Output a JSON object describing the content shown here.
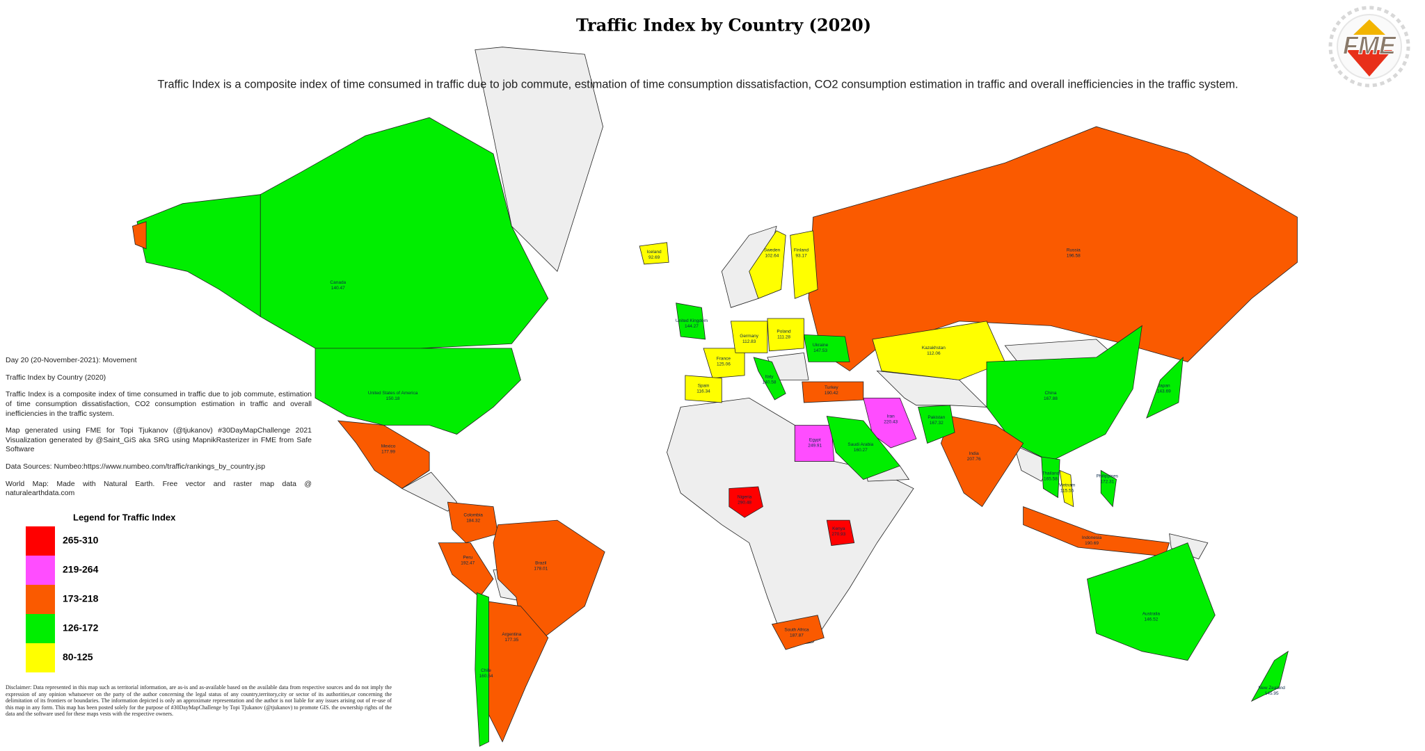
{
  "header": {
    "title": "Traffic Index by Country (2020)",
    "subtitle": "Traffic Index is a composite index of time consumed in traffic due to job commute, estimation of time consumption dissatisfaction, CO2 consumption estimation in traffic and overall inefficiencies in the traffic system.",
    "logo": "FME"
  },
  "side_text": [
    "Day 20 (20-November-2021): Movement",
    "Traffic Index by Country (2020)",
    "Traffic Index is a composite index of time consumed in traffic due to job commute, estimation of time consumption dissatisfaction, CO2 consumption estimation in traffic and overall inefficiencies in the traffic system.",
    "Map generated using FME for Topi Tjukanov (@tjukanov) #30DayMapChallenge 2021 Visualization generated by @Saint_GiS aka SRG using MapnikRasterizer in FME from Safe Software",
    "Data Sources: Numbeo:https://www.numbeo.com/traffic/rankings_by_country.jsp",
    "World Map: Made with Natural Earth. Free vector and raster map data @ naturalearthdata.com"
  ],
  "legend": {
    "title": "Legend for Traffic Index",
    "items": [
      {
        "label": "265-310",
        "color": "#ff0000"
      },
      {
        "label": "219-264",
        "color": "#ff4dff"
      },
      {
        "label": "173-218",
        "color": "#fa5a00"
      },
      {
        "label": "126-172",
        "color": "#00ee00"
      },
      {
        "label": "80-125",
        "color": "#ffff00"
      }
    ]
  },
  "countries": [
    {
      "name": "Canada",
      "value": 140.47,
      "color": "#00ee00"
    },
    {
      "name": "United States of America",
      "value": 150.18,
      "color": "#00ee00"
    },
    {
      "name": "Mexico",
      "value": 177.99,
      "color": "#fa5a00"
    },
    {
      "name": "Colombia",
      "value": 184.32,
      "color": "#fa5a00"
    },
    {
      "name": "Peru",
      "value": 192.47,
      "color": "#fa5a00"
    },
    {
      "name": "Brazil",
      "value": 178.01,
      "color": "#fa5a00"
    },
    {
      "name": "Argentina",
      "value": 177.35,
      "color": "#fa5a00"
    },
    {
      "name": "Chile",
      "value": 160.54,
      "color": "#00ee00"
    },
    {
      "name": "Nigeria",
      "value": 290.48,
      "color": "#ff0000"
    },
    {
      "name": "Kenya",
      "value": 270.93,
      "color": "#ff0000"
    },
    {
      "name": "Egypt",
      "value": 249.91,
      "color": "#ff4dff"
    },
    {
      "name": "South Africa",
      "value": 187.87,
      "color": "#fa5a00"
    },
    {
      "name": "Iran",
      "value": 220.43,
      "color": "#ff4dff"
    },
    {
      "name": "Saudi Arabia",
      "value": 160.27,
      "color": "#00ee00"
    },
    {
      "name": "Turkey",
      "value": 190.42,
      "color": "#fa5a00"
    },
    {
      "name": "Russia",
      "value": 196.58,
      "color": "#fa5a00"
    },
    {
      "name": "Kazakhstan",
      "value": 112.06,
      "color": "#ffff00"
    },
    {
      "name": "China",
      "value": 167.88,
      "color": "#00ee00"
    },
    {
      "name": "India",
      "value": 207.76,
      "color": "#fa5a00"
    },
    {
      "name": "Pakistan",
      "value": 167.32,
      "color": "#00ee00"
    },
    {
      "name": "Japan",
      "value": 143.69,
      "color": "#00ee00"
    },
    {
      "name": "Indonesia",
      "value": 190.69,
      "color": "#fa5a00"
    },
    {
      "name": "Australia",
      "value": 146.52,
      "color": "#00ee00"
    },
    {
      "name": "New Zealand",
      "value": 145.95,
      "color": "#00ee00"
    },
    {
      "name": "Sweden",
      "value": 102.64,
      "color": "#ffff00"
    },
    {
      "name": "Finland",
      "value": 93.17,
      "color": "#ffff00"
    },
    {
      "name": "Iceland",
      "value": 92.69,
      "color": "#ffff00"
    },
    {
      "name": "United Kingdom",
      "value": 144.27,
      "color": "#00ee00"
    },
    {
      "name": "France",
      "value": 125.06,
      "color": "#ffff00"
    },
    {
      "name": "Spain",
      "value": 116.34,
      "color": "#ffff00"
    },
    {
      "name": "Germany",
      "value": 112.83,
      "color": "#ffff00"
    },
    {
      "name": "Poland",
      "value": 111.28,
      "color": "#ffff00"
    },
    {
      "name": "Ukraine",
      "value": 147.53,
      "color": "#00ee00"
    },
    {
      "name": "Italy",
      "value": 140.58,
      "color": "#00ee00"
    },
    {
      "name": "Thailand",
      "value": 165.58,
      "color": "#00ee00"
    },
    {
      "name": "Vietnam",
      "value": 115.55,
      "color": "#ffff00"
    },
    {
      "name": "Philippines",
      "value": 172.31,
      "color": "#00ee00"
    }
  ],
  "disclaimer": "Disclaimer: Data represented in this map such as territorial information, are as-is and as-available based on the available data from respective sources and do not imply the expression of any opinion whatsoever on the party of the author concerning the legal status of any country,territory,city or sector of its authorities,or concerning the delimitation of its frontiers or boundaries. The information depicted is only an approximate representation and the author is not liable for any issues arising out of re-use of this map in any form. This map has been posted solely for the purpose of #30DayMapChallenge by Topi Tjukanov (@tjukanov) to promote GIS. the ownership rights of the data and the software used for these maps vests with the respective owners."
}
